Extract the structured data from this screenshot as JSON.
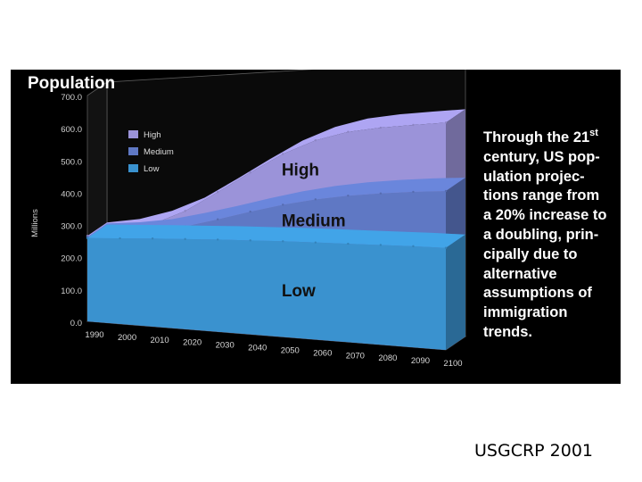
{
  "chart_data": {
    "type": "area",
    "title": "Population",
    "ylabel": "Millions",
    "xlabel": "",
    "x": [
      1990,
      2000,
      2010,
      2020,
      2030,
      2040,
      2050,
      2060,
      2070,
      2080,
      2090,
      2100
    ],
    "ylim": [
      0,
      700
    ],
    "y_ticks": [
      "0.0",
      "100.0",
      "200.0",
      "300.0",
      "400.0",
      "500.0",
      "600.0",
      "700.0"
    ],
    "x_ticks": [
      "1990",
      "2000",
      "2010",
      "2020",
      "2030",
      "2040",
      "2050",
      "2060",
      "2070",
      "2080",
      "2090",
      "2100"
    ],
    "series": [
      {
        "name": "High",
        "color": "#9b93d9",
        "values": [
          265,
          278,
          305,
          345,
          400,
          455,
          505,
          540,
          560,
          568,
          572,
          575
        ]
      },
      {
        "name": "Medium",
        "color": "#5f78c4",
        "values": [
          262,
          268,
          280,
          300,
          322,
          345,
          365,
          380,
          390,
          396,
          400,
          402
        ]
      },
      {
        "name": "Low",
        "color": "#3a92cf",
        "values": [
          258,
          260,
          262,
          263,
          264,
          264,
          264,
          263,
          262,
          261,
          260,
          258
        ]
      }
    ],
    "in_chart_labels": [
      "High",
      "Medium",
      "Low"
    ],
    "legend_position": "top-left",
    "grid": false,
    "style": "3d-stacked-area"
  },
  "caption": {
    "line_1": "Through the 21",
    "line_1_sup": "st",
    "lines": [
      "century, US pop-",
      "ulation projec-",
      "tions range from",
      "a 20% increase to",
      "a doubling, prin-",
      "cipally due to",
      "alternative",
      "assumptions of",
      "immigration",
      "trends."
    ]
  },
  "credit": "USGCRP 2001",
  "colors": {
    "panel_bg": "#000000",
    "text_on_dark": "#ffffff",
    "axis_text": "#bbbbbb"
  }
}
